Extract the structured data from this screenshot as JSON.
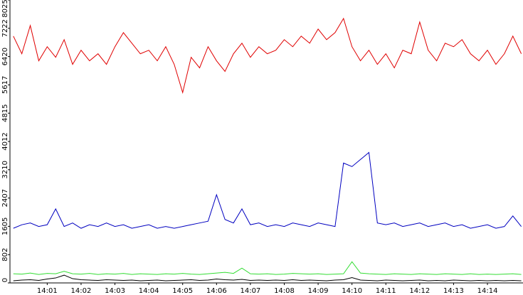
{
  "chart_data": {
    "type": "line",
    "x": [
      0,
      0.25,
      0.5,
      0.75,
      1,
      1.25,
      1.5,
      1.75,
      2,
      2.25,
      2.5,
      2.75,
      3,
      3.25,
      3.5,
      3.75,
      4,
      4.25,
      4.5,
      4.75,
      5,
      5.25,
      5.5,
      5.75,
      6,
      6.25,
      6.5,
      6.75,
      7,
      7.25,
      7.5,
      7.75,
      8,
      8.25,
      8.5,
      8.75,
      9,
      9.25,
      9.5,
      9.75,
      10,
      10.25,
      10.5,
      10.75,
      11,
      11.25,
      11.5,
      11.75,
      12,
      12.25,
      12.5,
      12.75,
      13,
      13.25,
      13.5,
      13.75,
      14,
      14.25,
      14.5,
      14.75,
      15
    ],
    "series": [
      {
        "color": "#e00000",
        "values": [
          7000,
          6500,
          7300,
          6300,
          6700,
          6400,
          6900,
          6200,
          6600,
          6300,
          6500,
          6200,
          6700,
          7100,
          6800,
          6500,
          6600,
          6300,
          6700,
          6200,
          5400,
          6400,
          6100,
          6700,
          6300,
          6000,
          6500,
          6800,
          6400,
          6700,
          6500,
          6600,
          6900,
          6700,
          7000,
          6800,
          7200,
          6900,
          7100,
          7500,
          6700,
          6300,
          6600,
          6200,
          6500,
          6100,
          6600,
          6500,
          7400,
          6600,
          6300,
          6800,
          6700,
          6900,
          6500,
          6300,
          6600,
          6200,
          6500,
          7000,
          6500
        ]
      },
      {
        "color": "#0000c0",
        "values": [
          1550,
          1650,
          1700,
          1600,
          1650,
          2100,
          1600,
          1700,
          1550,
          1650,
          1600,
          1700,
          1600,
          1650,
          1550,
          1600,
          1650,
          1550,
          1600,
          1550,
          1600,
          1650,
          1700,
          1750,
          2500,
          1800,
          1700,
          2100,
          1650,
          1700,
          1600,
          1650,
          1600,
          1700,
          1650,
          1600,
          1700,
          1650,
          1600,
          3400,
          3300,
          3500,
          3700,
          1700,
          1650,
          1700,
          1600,
          1650,
          1700,
          1600,
          1650,
          1700,
          1600,
          1650,
          1550,
          1600,
          1650,
          1550,
          1600,
          1900,
          1600
        ]
      },
      {
        "color": "#33dd33",
        "values": [
          260,
          250,
          280,
          240,
          270,
          260,
          330,
          260,
          250,
          270,
          240,
          260,
          250,
          270,
          240,
          260,
          250,
          240,
          260,
          250,
          270,
          250,
          240,
          260,
          280,
          300,
          270,
          420,
          260,
          250,
          260,
          240,
          250,
          270,
          260,
          250,
          260,
          240,
          250,
          260,
          600,
          280,
          260,
          250,
          240,
          260,
          250,
          240,
          260,
          250,
          240,
          260,
          250,
          240,
          260,
          240,
          250,
          240,
          250,
          260,
          240
        ]
      },
      {
        "color": "#000000",
        "values": [
          60,
          80,
          90,
          70,
          110,
          140,
          220,
          120,
          90,
          80,
          70,
          90,
          80,
          70,
          80,
          60,
          70,
          80,
          60,
          70,
          80,
          90,
          70,
          80,
          110,
          90,
          80,
          100,
          70,
          80,
          70,
          80,
          70,
          90,
          70,
          80,
          70,
          60,
          80,
          90,
          150,
          80,
          70,
          60,
          80,
          70,
          60,
          70,
          80,
          60,
          70,
          60,
          80,
          70,
          60,
          70,
          60,
          70,
          60,
          70,
          60
        ]
      }
    ],
    "xlim": [
      -0.1,
      15.05
    ],
    "ylim": [
      0,
      8025
    ],
    "xticks": [
      {
        "value": 1,
        "label": "14:01"
      },
      {
        "value": 2,
        "label": "14:02"
      },
      {
        "value": 3,
        "label": "14:03"
      },
      {
        "value": 4,
        "label": "14:04"
      },
      {
        "value": 5,
        "label": "14:05"
      },
      {
        "value": 6,
        "label": "14:06"
      },
      {
        "value": 7,
        "label": "14:07"
      },
      {
        "value": 8,
        "label": "14:08"
      },
      {
        "value": 9,
        "label": "14:09"
      },
      {
        "value": 10,
        "label": "14:10"
      },
      {
        "value": 11,
        "label": "14:11"
      },
      {
        "value": 12,
        "label": "14:12"
      },
      {
        "value": 13,
        "label": "14:13"
      },
      {
        "value": 14,
        "label": "14:14"
      }
    ],
    "yticks": [
      0,
      802,
      1605,
      2407,
      3210,
      4012,
      4815,
      5617,
      6420,
      7222,
      8025
    ]
  }
}
